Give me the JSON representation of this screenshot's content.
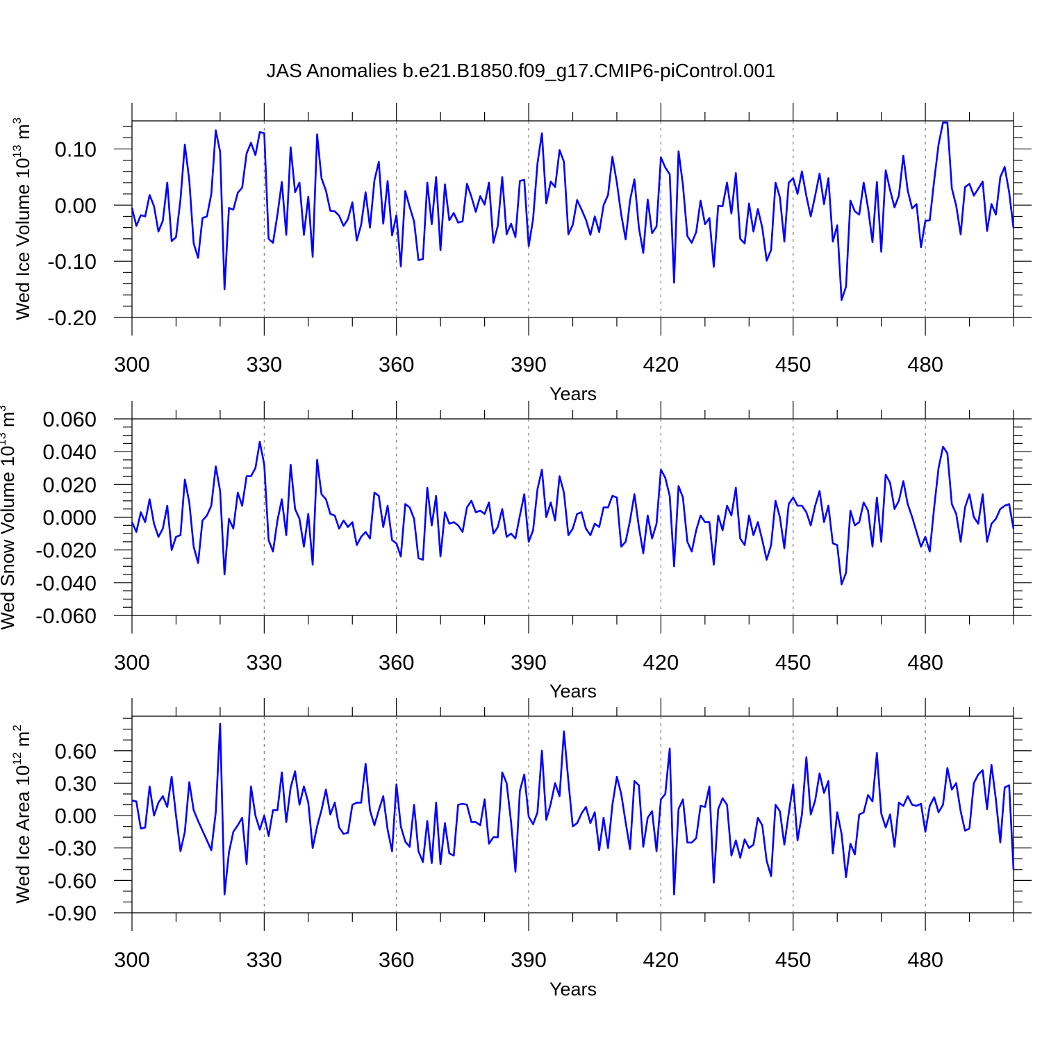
{
  "figure": {
    "title": "JAS Anomalies b.e21.B1850.f09_g17.CMIP6-piControl.001"
  },
  "chart_data": [
    {
      "type": "line",
      "id": "ice-volume",
      "title": "",
      "xlabel": "Years",
      "ylabel_main": "Wed Ice Volume 10",
      "ylabel_exp": "13",
      "ylabel_unit": " m",
      "ylabel_unit_exp": "3",
      "xlim": [
        300,
        500
      ],
      "ylim": [
        -0.2,
        0.15
      ],
      "xticks": [
        300,
        330,
        360,
        390,
        420,
        450,
        480
      ],
      "xtick_labels": [
        "300",
        "330",
        "360",
        "390",
        "420",
        "450",
        "480"
      ],
      "yticks": [
        -0.2,
        -0.1,
        0.0,
        0.1
      ],
      "ytick_labels": [
        "-0.20",
        "-0.10",
        "0.00",
        "0.10"
      ],
      "minor_y_step": 0.02,
      "series": [
        {
          "name": "Wed Ice Volume",
          "color": "#0000ff",
          "x_start": 300,
          "values": [
            -0.005,
            -0.037,
            -0.018,
            -0.02,
            0.018,
            -0.002,
            -0.047,
            -0.028,
            0.04,
            -0.064,
            -0.057,
            0.01,
            0.108,
            0.044,
            -0.068,
            -0.094,
            -0.023,
            -0.02,
            0.02,
            0.133,
            0.095,
            -0.15,
            -0.005,
            -0.008,
            0.022,
            0.031,
            0.092,
            0.111,
            0.089,
            0.13,
            0.128,
            -0.06,
            -0.067,
            -0.017,
            0.041,
            -0.053,
            0.103,
            0.023,
            0.04,
            -0.053,
            0.015,
            -0.092,
            0.126,
            0.048,
            0.026,
            -0.01,
            -0.011,
            -0.019,
            -0.037,
            -0.025,
            0.005,
            -0.063,
            -0.035,
            0.023,
            -0.04,
            0.044,
            0.077,
            -0.033,
            0.043,
            -0.054,
            -0.018,
            -0.109,
            0.025,
            -0.003,
            -0.029,
            -0.098,
            -0.096,
            0.04,
            -0.034,
            0.05,
            -0.08,
            0.037,
            -0.027,
            -0.014,
            -0.031,
            -0.029,
            0.038,
            0.015,
            -0.012,
            0.016,
            0.001,
            0.04,
            -0.067,
            -0.037,
            0.05,
            -0.052,
            -0.033,
            -0.057,
            0.043,
            0.045,
            -0.073,
            -0.025,
            0.074,
            0.128,
            0.003,
            0.042,
            0.032,
            0.098,
            0.077,
            -0.052,
            -0.035,
            0.009,
            -0.008,
            -0.026,
            -0.053,
            -0.02,
            -0.048,
            0.0,
            0.018,
            0.086,
            0.04,
            -0.017,
            -0.061,
            0.009,
            0.046,
            -0.04,
            -0.085,
            0.01,
            -0.05,
            -0.038,
            0.085,
            0.067,
            0.055,
            -0.138,
            0.096,
            0.036,
            -0.055,
            -0.067,
            -0.048,
            0.008,
            -0.034,
            -0.023,
            -0.11,
            -0.001,
            -0.002,
            0.04,
            -0.015,
            0.057,
            -0.06,
            -0.068,
            0.003,
            -0.047,
            -0.007,
            -0.04,
            -0.099,
            -0.08,
            0.04,
            0.014,
            -0.065,
            0.04,
            0.048,
            0.02,
            0.06,
            0.016,
            -0.02,
            0.017,
            0.056,
            0.002,
            0.048,
            -0.065,
            -0.036,
            -0.169,
            -0.145,
            0.008,
            -0.011,
            -0.017,
            0.04,
            -0.005,
            -0.066,
            0.041,
            -0.083,
            0.062,
            0.027,
            -0.004,
            0.017,
            0.088,
            0.026,
            -0.006,
            0.002,
            -0.075,
            -0.028,
            -0.027,
            0.044,
            0.108,
            0.147,
            0.147,
            0.03,
            -0.001,
            -0.052,
            0.032,
            0.038,
            0.017,
            0.029,
            0.042,
            -0.046,
            0.002,
            -0.017,
            0.05,
            0.068,
            0.023,
            -0.041
          ]
        }
      ]
    },
    {
      "type": "line",
      "id": "snow-volume",
      "title": "",
      "xlabel": "Years",
      "ylabel_main": "Wed Snow Volume 10",
      "ylabel_exp": "13",
      "ylabel_unit": " m",
      "ylabel_unit_exp": "3",
      "xlim": [
        300,
        500
      ],
      "ylim": [
        -0.06,
        0.06
      ],
      "xticks": [
        300,
        330,
        360,
        390,
        420,
        450,
        480
      ],
      "xtick_labels": [
        "300",
        "330",
        "360",
        "390",
        "420",
        "450",
        "480"
      ],
      "yticks": [
        -0.06,
        -0.04,
        -0.02,
        0.0,
        0.02,
        0.04,
        0.06
      ],
      "ytick_labels": [
        "-0.060",
        "-0.040",
        "-0.020",
        "0.000",
        "0.020",
        "0.040",
        "0.060"
      ],
      "minor_y_step": 0.005,
      "series": [
        {
          "name": "Wed Snow Volume",
          "color": "#0000ff",
          "x_start": 300,
          "values": [
            -0.003,
            -0.009,
            0.003,
            -0.003,
            0.011,
            -0.004,
            -0.012,
            -0.007,
            0.007,
            -0.02,
            -0.012,
            -0.011,
            0.023,
            0.009,
            -0.018,
            -0.028,
            -0.002,
            0.001,
            0.007,
            0.031,
            0.016,
            -0.035,
            -0.001,
            -0.007,
            0.015,
            0.007,
            0.025,
            0.025,
            0.03,
            0.046,
            0.032,
            -0.014,
            -0.021,
            -0.002,
            0.011,
            -0.011,
            0.032,
            0.005,
            -0.001,
            -0.018,
            0.002,
            -0.029,
            0.035,
            0.014,
            0.011,
            0.002,
            0.001,
            -0.007,
            -0.002,
            -0.006,
            -0.003,
            -0.017,
            -0.012,
            -0.009,
            -0.013,
            0.015,
            0.013,
            -0.006,
            0.007,
            -0.014,
            -0.016,
            -0.024,
            0.008,
            0.006,
            -0.001,
            -0.025,
            -0.026,
            0.018,
            -0.005,
            0.013,
            -0.024,
            0.003,
            -0.004,
            -0.003,
            -0.005,
            -0.009,
            0.006,
            0.01,
            0.003,
            0.004,
            0.002,
            0.009,
            -0.01,
            -0.006,
            0.005,
            -0.012,
            -0.01,
            -0.013,
            0.001,
            0.014,
            -0.015,
            -0.008,
            0.017,
            0.029,
            0.0,
            0.009,
            -0.002,
            0.025,
            0.015,
            -0.011,
            -0.007,
            0.002,
            0.003,
            -0.007,
            -0.011,
            -0.004,
            -0.006,
            0.006,
            0.006,
            0.013,
            0.012,
            -0.018,
            -0.015,
            -0.002,
            0.014,
            -0.006,
            -0.022,
            0.001,
            -0.013,
            -0.004,
            0.029,
            0.024,
            0.013,
            -0.03,
            0.019,
            0.012,
            -0.015,
            -0.021,
            -0.008,
            0.001,
            -0.003,
            -0.003,
            -0.029,
            0.001,
            -0.008,
            0.007,
            0.001,
            0.018,
            -0.013,
            -0.017,
            0.001,
            -0.011,
            -0.003,
            -0.014,
            -0.026,
            -0.017,
            0.01,
            0.0,
            -0.019,
            0.008,
            0.012,
            0.007,
            0.007,
            0.003,
            -0.005,
            0.007,
            0.016,
            -0.003,
            0.007,
            -0.016,
            -0.017,
            -0.041,
            -0.034,
            0.004,
            -0.005,
            -0.003,
            0.009,
            0.004,
            -0.018,
            0.012,
            -0.015,
            0.026,
            0.021,
            0.005,
            0.01,
            0.022,
            0.008,
            0.0,
            -0.009,
            -0.018,
            -0.012,
            -0.021,
            0.006,
            0.03,
            0.043,
            0.039,
            0.008,
            0.002,
            -0.015,
            0.006,
            0.014,
            0.0,
            -0.004,
            0.014,
            -0.015,
            -0.004,
            -0.001,
            0.005,
            0.007,
            0.008,
            -0.007
          ]
        }
      ]
    },
    {
      "type": "line",
      "id": "ice-area",
      "title": "",
      "xlabel": "Years",
      "ylabel_main": "Wed Ice Area 10",
      "ylabel_exp": "12",
      "ylabel_unit": " m",
      "ylabel_unit_exp": "2",
      "xlim": [
        300,
        500
      ],
      "ylim": [
        -0.9,
        0.92
      ],
      "xticks": [
        300,
        330,
        360,
        390,
        420,
        450,
        480
      ],
      "xtick_labels": [
        "300",
        "330",
        "360",
        "390",
        "420",
        "450",
        "480"
      ],
      "yticks": [
        -0.9,
        -0.6,
        -0.3,
        0.0,
        0.3,
        0.6
      ],
      "ytick_labels": [
        "-0.90",
        "-0.60",
        "-0.30",
        "0.00",
        "0.30",
        "0.60"
      ],
      "minor_y_step": 0.1,
      "series": [
        {
          "name": "Wed Ice Area",
          "color": "#0000ff",
          "x_start": 300,
          "values": [
            0.14,
            0.13,
            -0.12,
            -0.11,
            0.27,
            0.0,
            0.12,
            0.18,
            0.08,
            0.36,
            0.0,
            -0.33,
            -0.15,
            0.31,
            0.05,
            -0.05,
            -0.14,
            -0.23,
            -0.32,
            0.03,
            0.85,
            -0.73,
            -0.34,
            -0.15,
            -0.09,
            -0.02,
            -0.45,
            0.27,
            0.0,
            -0.13,
            0.0,
            -0.19,
            0.05,
            0.05,
            0.4,
            -0.06,
            0.26,
            0.41,
            0.1,
            0.27,
            0.12,
            -0.3,
            -0.1,
            0.05,
            0.24,
            0.01,
            0.12,
            -0.11,
            -0.17,
            -0.16,
            0.1,
            0.12,
            0.12,
            0.48,
            0.05,
            -0.09,
            0.05,
            0.18,
            -0.13,
            -0.33,
            0.29,
            -0.1,
            -0.24,
            -0.29,
            0.1,
            -0.33,
            -0.43,
            -0.05,
            -0.44,
            0.12,
            -0.45,
            -0.07,
            -0.35,
            -0.37,
            0.1,
            0.11,
            0.1,
            -0.06,
            -0.06,
            -0.09,
            0.15,
            -0.26,
            -0.2,
            -0.2,
            0.4,
            0.3,
            -0.06,
            -0.52,
            0.23,
            0.38,
            -0.01,
            -0.08,
            0.03,
            0.6,
            -0.04,
            0.11,
            0.3,
            0.18,
            0.78,
            0.32,
            -0.1,
            -0.07,
            0.02,
            0.08,
            -0.07,
            0.03,
            -0.32,
            -0.02,
            -0.3,
            0.1,
            0.36,
            0.2,
            -0.06,
            -0.31,
            0.32,
            0.28,
            -0.29,
            -0.02,
            0.04,
            -0.33,
            0.15,
            0.2,
            0.62,
            -0.73,
            0.06,
            0.15,
            -0.25,
            -0.25,
            -0.21,
            0.09,
            0.08,
            0.27,
            -0.62,
            0.06,
            0.16,
            0.1,
            -0.37,
            -0.23,
            -0.39,
            -0.22,
            -0.3,
            -0.27,
            -0.02,
            -0.09,
            -0.42,
            -0.56,
            0.1,
            0.04,
            -0.27,
            0.02,
            0.29,
            -0.23,
            0.01,
            0.54,
            0.01,
            0.14,
            0.39,
            0.21,
            0.32,
            -0.35,
            0.03,
            -0.17,
            -0.57,
            -0.26,
            -0.36,
            0.01,
            0.03,
            0.19,
            0.13,
            0.58,
            0.02,
            -0.11,
            0.01,
            -0.29,
            0.12,
            0.09,
            0.18,
            0.1,
            0.09,
            0.11,
            -0.15,
            0.09,
            0.17,
            0.03,
            0.1,
            0.44,
            0.24,
            0.3,
            0.04,
            -0.14,
            -0.12,
            0.3,
            0.38,
            0.42,
            0.06,
            0.47,
            0.15,
            -0.25,
            0.26,
            0.28,
            -0.5
          ]
        }
      ]
    }
  ]
}
